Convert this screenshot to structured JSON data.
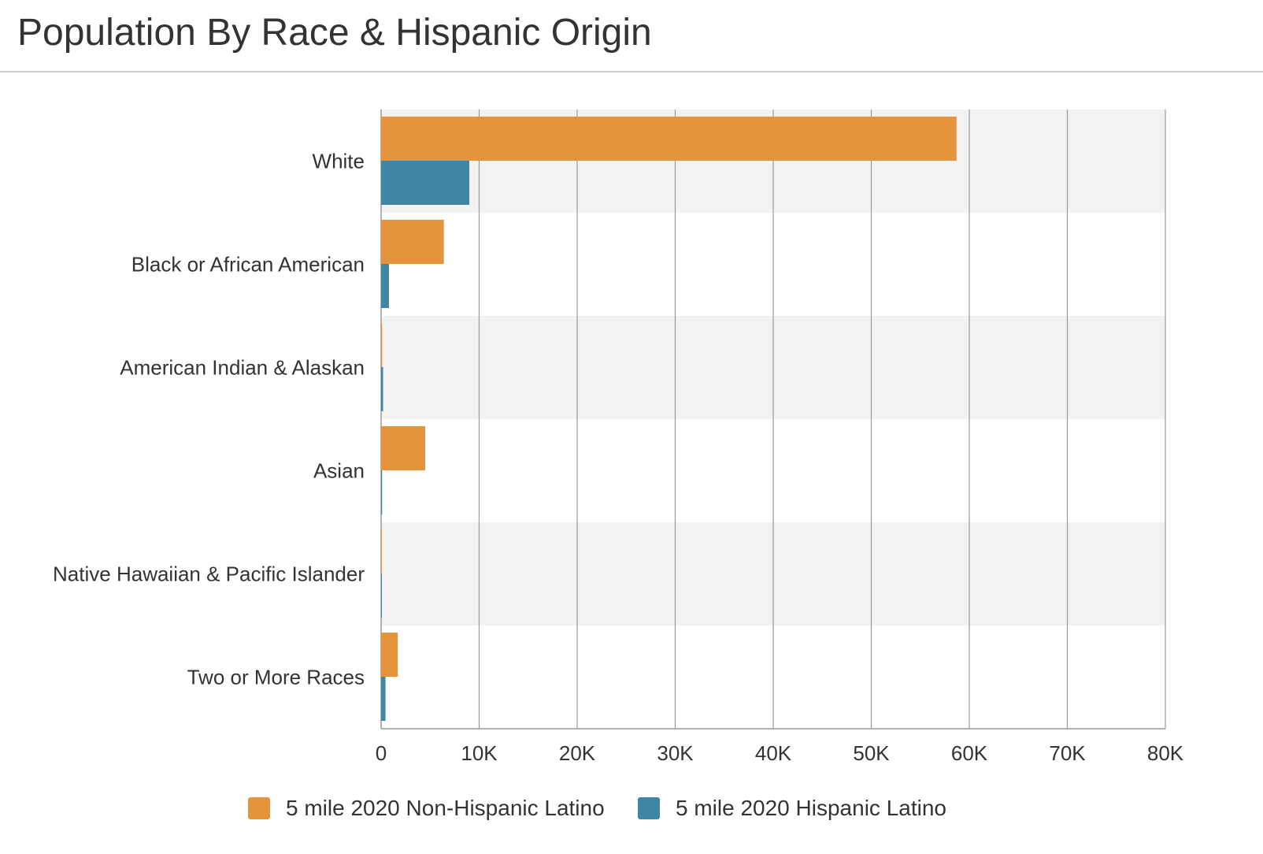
{
  "title": "Population By Race & Hispanic Origin",
  "colors": {
    "series_non_hispanic": "#e5943c",
    "series_hispanic": "#3e86a3",
    "band": "#f2f2f2",
    "grid": "#9a9a9a",
    "text": "#333333"
  },
  "chart_data": {
    "type": "bar",
    "orientation": "horizontal",
    "title": "Population By Race & Hispanic Origin",
    "categories": [
      "White",
      "Black or African American",
      "American Indian & Alaskan",
      "Asian",
      "Native Hawaiian & Pacific Islander",
      "Two or More Races"
    ],
    "series": [
      {
        "name": "5 mile 2020 Non-Hispanic Latino",
        "values": [
          58700,
          6400,
          100,
          4500,
          50,
          1700
        ]
      },
      {
        "name": "5 mile 2020 Hispanic Latino",
        "values": [
          9000,
          800,
          200,
          100,
          50,
          450
        ]
      }
    ],
    "xlim": [
      0,
      80000
    ],
    "x_ticks": [
      0,
      10000,
      20000,
      30000,
      40000,
      50000,
      60000,
      70000,
      80000
    ],
    "x_tick_labels": [
      "0",
      "10K",
      "20K",
      "30K",
      "40K",
      "50K",
      "60K",
      "70K",
      "80K"
    ],
    "xlabel": "",
    "ylabel": "",
    "grid": true,
    "legend_position": "bottom"
  }
}
